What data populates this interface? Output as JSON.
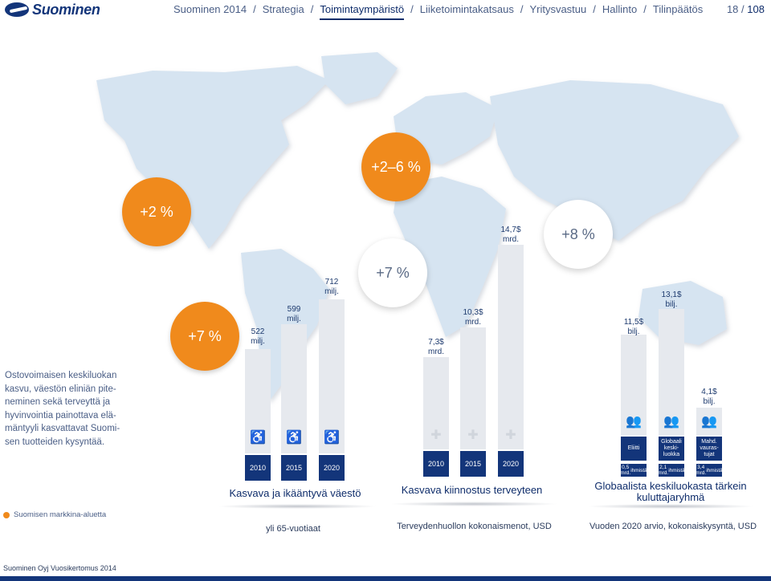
{
  "header": {
    "logo_text": "Suominen",
    "nav": [
      "Suominen 2014",
      "Strategia",
      "Toimintaympäristö",
      "Liiketoimintakatsaus",
      "Yritysvastuu",
      "Hallinto",
      "Tilinpäätös"
    ],
    "active_index": 2,
    "page_current": "18",
    "page_sep": "/",
    "page_total": "108"
  },
  "circles": {
    "na": "+2 %",
    "europe": "+2–6 %",
    "asia": "+8 %",
    "africa": "+7 %",
    "left": "+7 %"
  },
  "side_text": "Ostovoimaisen keskiluokan kasvu, väestön eliniän pite­neminen sekä terveyttä ja hyvinvointia painottava elä­mäntyyli kasvattavat Suomi­sen tuotteiden kysyntää.",
  "population": {
    "bars": [
      {
        "label_line1": "522",
        "label_line2": "milj.",
        "year": "2010"
      },
      {
        "label_line1": "599",
        "label_line2": "milj.",
        "year": "2015"
      },
      {
        "label_line1": "712",
        "label_line2": "milj.",
        "year": "2020"
      }
    ],
    "heading": "Kasvava ja ikääntyvä väestö",
    "caption": "yli 65-vuotiaat"
  },
  "health": {
    "bars": [
      {
        "label_line1": "7,3$",
        "label_line2": "mrd.",
        "year": "2010"
      },
      {
        "label_line1": "10,3$",
        "label_line2": "mrd.",
        "year": "2015"
      },
      {
        "label_line1": "14,7$",
        "label_line2": "mrd.",
        "year": "2020"
      }
    ],
    "heading": "Kasvava kiinnostus terveyteen",
    "caption": "Terveydenhuollon kokonaismenot, USD"
  },
  "middleclass": {
    "bars": [
      {
        "label_line1": "11,5$",
        "label_line2": "bilj.",
        "cat": "Eliitti",
        "sub_line1": "0,5 mrd.",
        "sub_line2": "ihmistä"
      },
      {
        "label_line1": "13,1$",
        "label_line2": "bilj.",
        "cat": "Globaali keski- luokka",
        "sub_line1": "2,1 mrd.",
        "sub_line2": "ihmistä"
      },
      {
        "label_line1": "4,1$",
        "label_line2": "bilj.",
        "cat": "Mahd. vauras- tujat",
        "sub_line1": "3,4 mrd.",
        "sub_line2": "ihmistä"
      }
    ],
    "heading_line1": "Globaalista keskiluokasta tärkein",
    "heading_line2": "kuluttajaryhmä",
    "caption": "Vuoden 2020 arvio, kokonaiskysyntä, USD"
  },
  "legend": "Suomisen markkina-aluetta",
  "footer": "Suominen Oyj Vuosikertomus 2014",
  "colors": {
    "orange": "#f08a1c",
    "navy": "#13357a",
    "map": "#d3e3f1"
  }
}
